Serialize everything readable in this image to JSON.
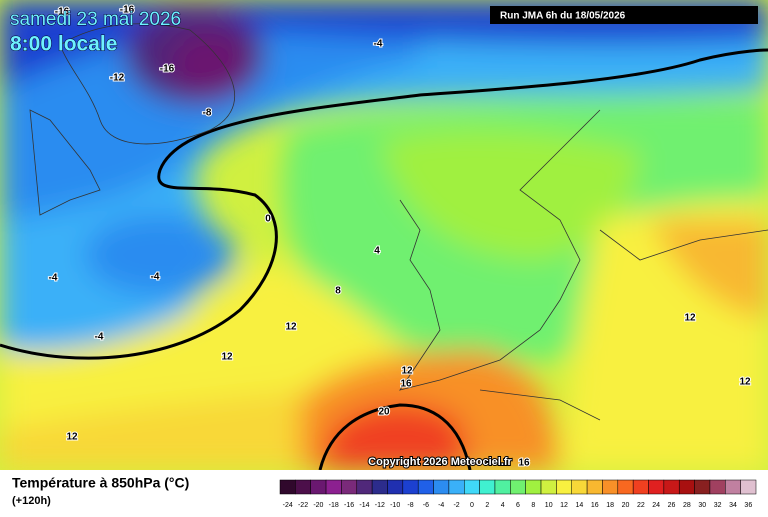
{
  "header": {
    "date": "samedi 23 mai 2026",
    "time": "8:00 locale",
    "run": "Run JMA 6h du 18/05/2026"
  },
  "map": {
    "contour_labels": [
      -16,
      -16,
      -4,
      -12,
      -16,
      -8,
      0,
      4,
      -4,
      -4,
      -4,
      8,
      12,
      12,
      12,
      16,
      20,
      12,
      12,
      12,
      16
    ],
    "copyright": "Copyright 2026 Meteociel.fr"
  },
  "footer": {
    "title": "Température à 850hPa (°C)",
    "lead": "(+120h)"
  },
  "legend": {
    "labels": [
      -24,
      -22,
      -20,
      -18,
      -16,
      -14,
      -12,
      -10,
      -8,
      -6,
      -4,
      -2,
      0,
      2,
      4,
      6,
      8,
      10,
      12,
      14,
      16,
      18,
      20,
      22,
      24,
      26,
      28,
      30,
      32,
      34,
      36
    ],
    "colors": [
      "#30082c",
      "#4c0f4a",
      "#6a1870",
      "#8c2090",
      "#7a2a7a",
      "#50287a",
      "#2c2c8c",
      "#2030b0",
      "#1c40d0",
      "#2060e8",
      "#2c8cf0",
      "#3ab0f8",
      "#40d8f8",
      "#40f0d0",
      "#50f0a0",
      "#70f070",
      "#a0f040",
      "#d0f040",
      "#f8f040",
      "#f8d838",
      "#f8b830",
      "#f89028",
      "#f86820",
      "#f04020",
      "#e02020",
      "#c81818",
      "#a81010",
      "#882020",
      "#a04060",
      "#c080a0",
      "#e0c0d0"
    ]
  }
}
